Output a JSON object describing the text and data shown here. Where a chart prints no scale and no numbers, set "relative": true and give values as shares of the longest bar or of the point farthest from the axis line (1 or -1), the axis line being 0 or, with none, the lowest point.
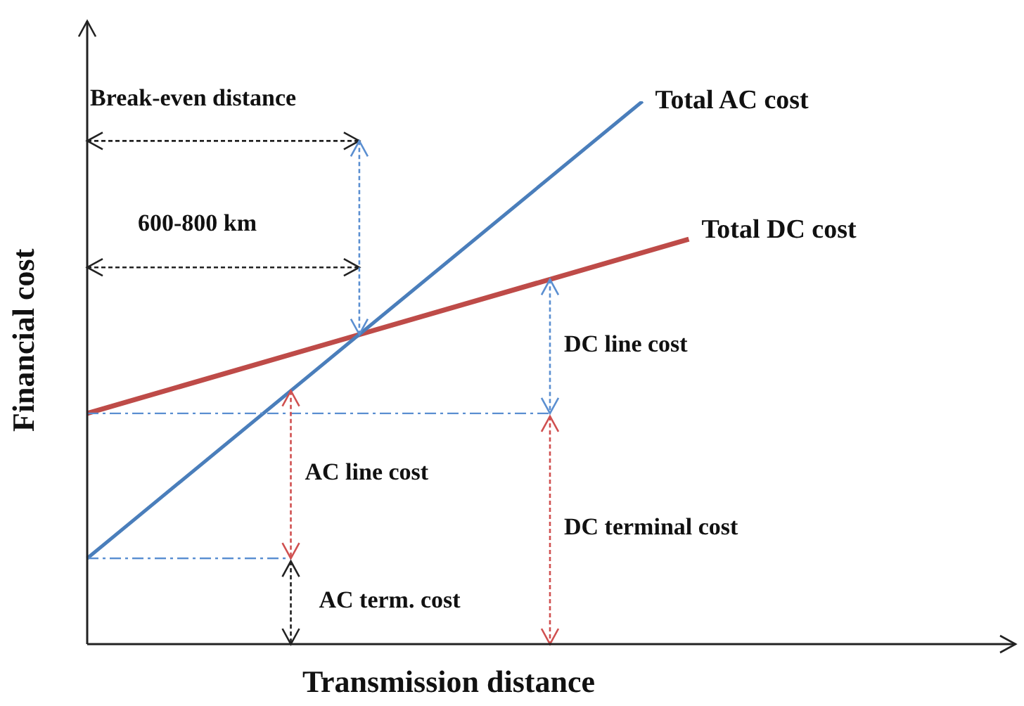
{
  "chart_data": {
    "type": "line",
    "xlabel": "Transmission distance",
    "ylabel": "Financial cost",
    "relative": true,
    "categories": [
      null,
      null,
      null,
      null,
      null,
      null,
      null,
      null,
      null,
      null,
      null,
      null,
      null,
      null,
      null,
      null,
      null,
      null,
      null,
      null,
      null
    ],
    "series": [
      {
        "name": "Total AC cost",
        "color": "#4a7ebb",
        "values": [
          0.158,
          null,
          null,
          null,
          null,
          null,
          null,
          null,
          null,
          null,
          null,
          null,
          1,
          null,
          null,
          null,
          null,
          null,
          null,
          null,
          null
        ]
      },
      {
        "name": "Total DC cost",
        "color": "#be4b48",
        "values": [
          0.425,
          null,
          null,
          null,
          null,
          null,
          null,
          null,
          null,
          null,
          null,
          null,
          null,
          0.746,
          null,
          null,
          null,
          null,
          null,
          null,
          null
        ]
      }
    ],
    "ref_lines": [
      {
        "axis": "y",
        "value": 0.425,
        "color": "#5b8fd1",
        "line_style": "dashed"
      },
      {
        "axis": "y",
        "value": 0.158,
        "color": "#5b8fd1",
        "line_style": "dashed"
      }
    ],
    "annotations": [
      "Break-even distance",
      "600-800 km",
      "DC line cost",
      "AC line cost",
      "DC terminal cost",
      "AC term. cost"
    ]
  }
}
